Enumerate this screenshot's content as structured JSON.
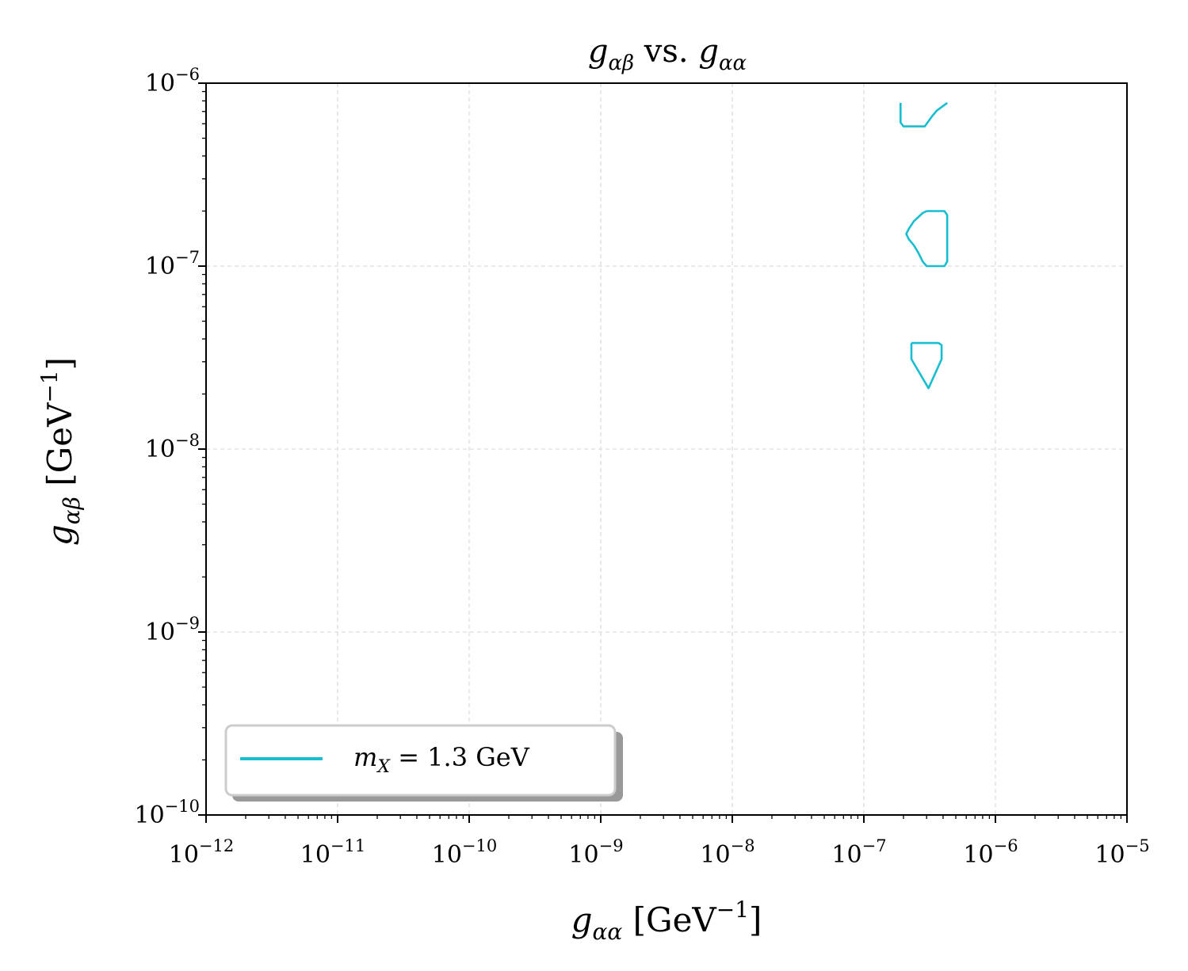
{
  "chart_data": {
    "type": "line",
    "title": {
      "g": "g",
      "sub1": "αβ",
      "mid": " vs. ",
      "g2": "g",
      "sub2": "αα"
    },
    "xlabel": {
      "g": "g",
      "sub": "αα",
      "unit": " [GeV",
      "exp": "−1",
      "close": "]"
    },
    "ylabel": {
      "g": "g",
      "sub": "αβ",
      "unit": " [GeV",
      "exp": "−1",
      "close": "]"
    },
    "xscale": "log",
    "yscale": "log",
    "xlim": [
      1e-12,
      1e-05
    ],
    "ylim": [
      1e-10,
      1e-06
    ],
    "x_ticks": [
      {
        "base": "10",
        "exp": "−12",
        "value": 1e-12
      },
      {
        "base": "10",
        "exp": "−11",
        "value": 1e-11
      },
      {
        "base": "10",
        "exp": "−10",
        "value": 1e-10
      },
      {
        "base": "10",
        "exp": "−9",
        "value": 1e-09
      },
      {
        "base": "10",
        "exp": "−8",
        "value": 1e-08
      },
      {
        "base": "10",
        "exp": "−7",
        "value": 1e-07
      },
      {
        "base": "10",
        "exp": "−6",
        "value": 1e-06
      },
      {
        "base": "10",
        "exp": "−5",
        "value": 1e-05
      }
    ],
    "y_ticks": [
      {
        "base": "10",
        "exp": "−10",
        "value": 1e-10
      },
      {
        "base": "10",
        "exp": "−9",
        "value": 1e-09
      },
      {
        "base": "10",
        "exp": "−8",
        "value": 1e-08
      },
      {
        "base": "10",
        "exp": "−7",
        "value": 1e-07
      },
      {
        "base": "10",
        "exp": "−6",
        "value": 1e-06
      }
    ],
    "grid": true,
    "legend_position": "lower-left",
    "series": [
      {
        "name": "m_X = 1.3 GeV",
        "label_parts": {
          "m": "m",
          "sub": "X",
          "rest": " = 1.3 GeV"
        },
        "color": "#17becf",
        "contours": [
          [
            [
              1.9e-07,
              7.8e-07
            ],
            [
              1.9e-07,
              6.1e-07
            ],
            [
              2e-07,
              5.8e-07
            ],
            [
              2.9e-07,
              5.8e-07
            ],
            [
              3.1e-07,
              6.2e-07
            ],
            [
              3.3e-07,
              6.6e-07
            ],
            [
              3.6e-07,
              7.1e-07
            ],
            [
              4.3e-07,
              7.8e-07
            ]
          ],
          [
            [
              3e-07,
              2e-07
            ],
            [
              4.1e-07,
              2e-07
            ],
            [
              4.3e-07,
              1.9e-07
            ],
            [
              4.3e-07,
              1.06e-07
            ],
            [
              4.1e-07,
              1e-07
            ],
            [
              3e-07,
              1e-07
            ],
            [
              2.8e-07,
              1.06e-07
            ],
            [
              2.6e-07,
              1.18e-07
            ],
            [
              2.4e-07,
              1.3e-07
            ],
            [
              2.2e-07,
              1.4e-07
            ],
            [
              2.1e-07,
              1.5e-07
            ],
            [
              2.2e-07,
              1.6e-07
            ],
            [
              2.4e-07,
              1.76e-07
            ],
            [
              2.8e-07,
              1.95e-07
            ],
            [
              3e-07,
              2e-07
            ]
          ],
          [
            [
              2.3e-07,
              3.8e-08
            ],
            [
              3.7e-07,
              3.8e-08
            ],
            [
              3.9e-07,
              3.7e-08
            ],
            [
              3.9e-07,
              3.1e-08
            ],
            [
              3.1e-07,
              2.15e-08
            ],
            [
              2.3e-07,
              3.1e-08
            ],
            [
              2.3e-07,
              3.8e-08
            ]
          ]
        ]
      }
    ]
  }
}
